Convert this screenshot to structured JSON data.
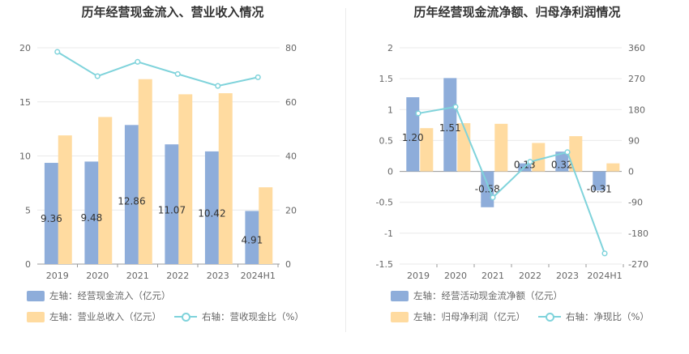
{
  "colors": {
    "bar_primary": "#8eadda",
    "bar_secondary": "#ffdba0",
    "line": "#7fd3db",
    "grid": "#e9e9e9",
    "axis_text": "#666666"
  },
  "chart_data": [
    {
      "type": "bar",
      "title": "历年经营现金流入、营业收入情况",
      "categories": [
        "2019",
        "2020",
        "2021",
        "2022",
        "2023",
        "2024H1"
      ],
      "left_ticks": [
        "20",
        "15",
        "10",
        "5",
        "0"
      ],
      "right_ticks": [
        "80",
        "60",
        "40",
        "20",
        "0"
      ],
      "ylim_left": [
        0,
        20
      ],
      "ylim_right": [
        0,
        80
      ],
      "series": [
        {
          "name": "左轴：经营现金流入（亿元）",
          "kind": "bar",
          "axis": "left",
          "values": [
            9.36,
            9.48,
            12.86,
            11.07,
            10.42,
            4.91
          ],
          "labels": [
            "9.36",
            "9.48",
            "12.86",
            "11.07",
            "10.42",
            "4.91"
          ]
        },
        {
          "name": "左轴：营业总收入（亿元）",
          "kind": "bar",
          "axis": "left",
          "values": [
            11.9,
            13.6,
            17.1,
            15.7,
            15.8,
            7.1
          ]
        },
        {
          "name": "右轴：营收现金比（%）",
          "kind": "line",
          "axis": "right",
          "values": [
            78.5,
            69.5,
            74.8,
            70.3,
            65.9,
            69.1
          ]
        }
      ],
      "legend": {
        "position": "bottom-left"
      }
    },
    {
      "type": "bar",
      "title": "历年经营现金流净额、归母净利润情况",
      "categories": [
        "2019",
        "2020",
        "2021",
        "2022",
        "2023",
        "2024H1"
      ],
      "left_ticks": [
        "2",
        "1.5",
        "1",
        "0.5",
        "0",
        "-0.5",
        "-1",
        "-1.5"
      ],
      "right_ticks": [
        "360",
        "270",
        "180",
        "90",
        "0",
        "-90",
        "-180",
        "-270"
      ],
      "ylim_left": [
        -1.5,
        2
      ],
      "ylim_right": [
        -270,
        360
      ],
      "series": [
        {
          "name": "左轴：经营活动现金流净额（亿元）",
          "kind": "bar",
          "axis": "left",
          "values": [
            1.2,
            1.51,
            -0.58,
            0.13,
            0.32,
            -0.31
          ],
          "labels": [
            "1.20",
            "1.51",
            "-0.58",
            "0.13",
            "0.32",
            "-0.31"
          ]
        },
        {
          "name": "左轴：归母净利润（亿元）",
          "kind": "bar",
          "axis": "left",
          "values": [
            0.7,
            0.78,
            0.77,
            0.46,
            0.57,
            0.13
          ]
        },
        {
          "name": "右轴：净现比（%）",
          "kind": "line",
          "axis": "right",
          "values": [
            169,
            188,
            -76,
            28,
            56,
            -239
          ]
        }
      ],
      "legend": {
        "position": "bottom-left"
      }
    }
  ]
}
